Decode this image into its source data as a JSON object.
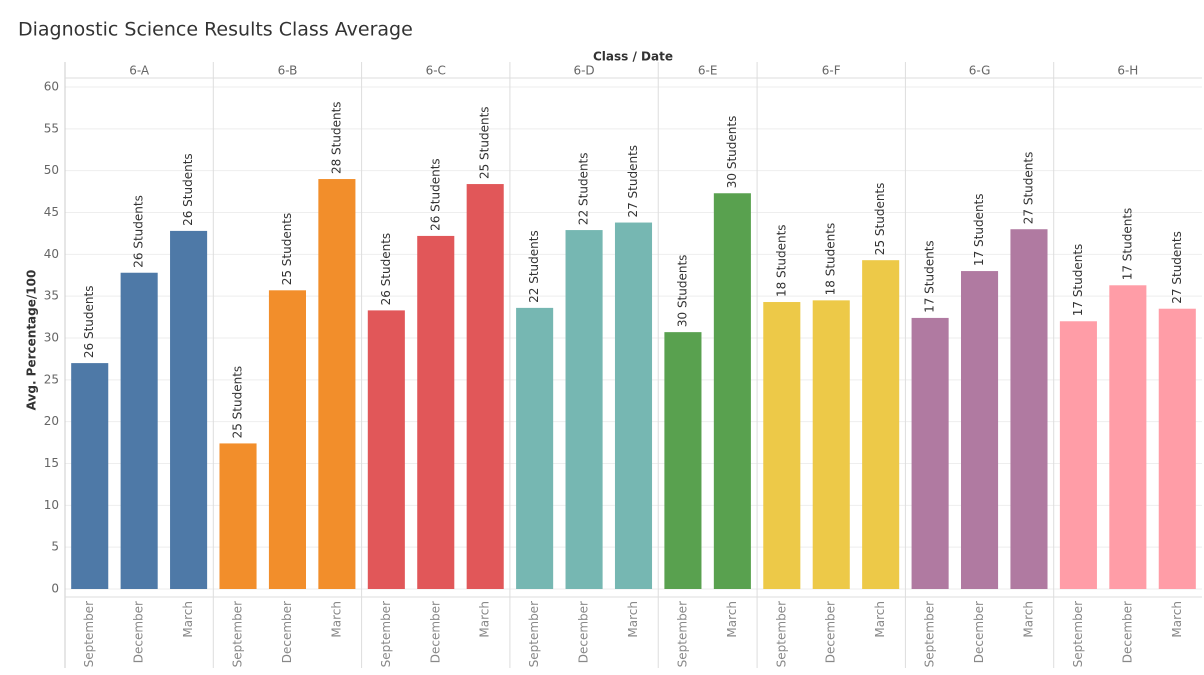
{
  "chart_data": {
    "type": "bar",
    "title": "Diagnostic Science Results Class Average",
    "x_axis_title": "Class / Date",
    "y_axis_title": "Avg. Percentage/100",
    "ylim": [
      0,
      60
    ],
    "yticks": [
      0,
      5,
      10,
      15,
      20,
      25,
      30,
      35,
      40,
      45,
      50,
      55,
      60
    ],
    "grid": true,
    "facets": [
      {
        "name": "6-A",
        "color": "#4e79a7",
        "categories": [
          "September",
          "December",
          "March"
        ],
        "values": [
          27.0,
          37.8,
          42.8
        ],
        "labels": [
          "26 Students",
          "26 Students",
          "26 Students"
        ]
      },
      {
        "name": "6-B",
        "color": "#f28e2b",
        "categories": [
          "September",
          "December",
          "March"
        ],
        "values": [
          17.4,
          35.7,
          49.0
        ],
        "labels": [
          "25 Students",
          "25 Students",
          "28 Students"
        ]
      },
      {
        "name": "6-C",
        "color": "#e15759",
        "categories": [
          "September",
          "December",
          "March"
        ],
        "values": [
          33.3,
          42.2,
          48.4
        ],
        "labels": [
          "26 Students",
          "26 Students",
          "25 Students"
        ]
      },
      {
        "name": "6-D",
        "color": "#76b7b2",
        "categories": [
          "September",
          "December",
          "March"
        ],
        "values": [
          33.6,
          42.9,
          43.8
        ],
        "labels": [
          "22 Students",
          "22 Students",
          "27 Students"
        ]
      },
      {
        "name": "6-E",
        "color": "#59a14f",
        "categories": [
          "September",
          "March"
        ],
        "values": [
          30.7,
          47.3
        ],
        "labels": [
          "30 Students",
          "30 Students"
        ]
      },
      {
        "name": "6-F",
        "color": "#edc948",
        "categories": [
          "September",
          "December",
          "March"
        ],
        "values": [
          34.3,
          34.5,
          39.3
        ],
        "labels": [
          "18 Students",
          "18 Students",
          "25 Students"
        ]
      },
      {
        "name": "6-G",
        "color": "#b07aa1",
        "categories": [
          "September",
          "December",
          "March"
        ],
        "values": [
          32.4,
          38.0,
          43.0
        ],
        "labels": [
          "17 Students",
          "17 Students",
          "27 Students"
        ]
      },
      {
        "name": "6-H",
        "color": "#ff9da7",
        "categories": [
          "September",
          "December",
          "March"
        ],
        "values": [
          32.0,
          36.3,
          33.5
        ],
        "labels": [
          "17 Students",
          "17 Students",
          "27 Students"
        ]
      }
    ]
  }
}
